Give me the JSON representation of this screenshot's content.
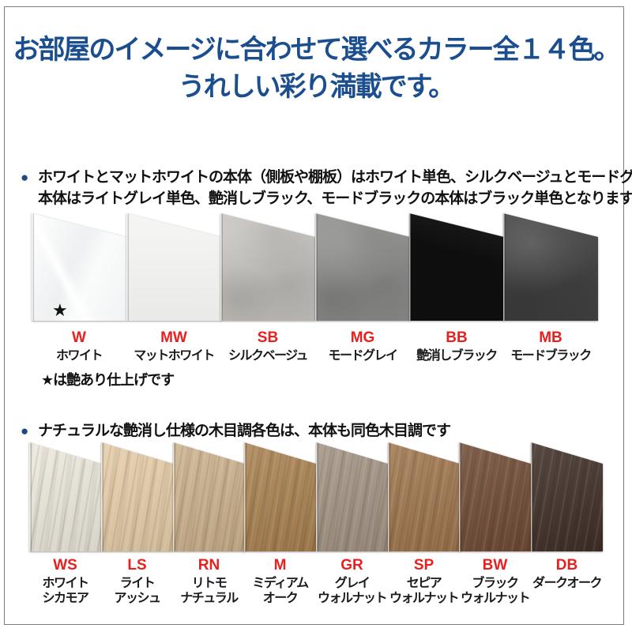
{
  "colors": {
    "title_blue": "#1b4e8f",
    "code_red": "#e8201f",
    "bullet_navy": "#1d4a86",
    "frame_gray": "#7d7d7d"
  },
  "title": {
    "line1": "お部屋のイメージに合わせて選べるカラー全１４色。",
    "line2": "うれしい彩り満載です。"
  },
  "bullet_glyph": "●",
  "sections": [
    {
      "note_lines": [
        "ホワイトとマットホワイトの本体（側板や棚板）はホワイト単色、シルクベージュとモードグレイの",
        "本体はライトグレイ単色、艶消しブラック、モードブラックの本体はブラック単色となります"
      ],
      "footnote": "★は艶あり仕上げです",
      "swatches": [
        {
          "code": "W",
          "name_lines": [
            "ホワイト"
          ],
          "hex": "#f6f6f6",
          "texture": "gloss",
          "star": "★"
        },
        {
          "code": "MW",
          "name_lines": [
            "マットホワイト"
          ],
          "hex": "#f2f2f1",
          "texture": "flat"
        },
        {
          "code": "SB",
          "name_lines": [
            "シルクベージュ"
          ],
          "hex": "#c9c6c1",
          "texture": "plaster"
        },
        {
          "code": "MG",
          "name_lines": [
            "モードグレイ"
          ],
          "hex": "#8d8d8b",
          "texture": "plaster"
        },
        {
          "code": "BB",
          "name_lines": [
            "艶消しブラック"
          ],
          "hex": "#0e0e0e",
          "texture": "black"
        },
        {
          "code": "MB",
          "name_lines": [
            "モードブラック"
          ],
          "hex": "#3e3e3e",
          "texture": "plaster"
        }
      ]
    },
    {
      "note_lines": [
        "ナチュラルな艶消し仕様の木目調各色は、本体も同色木目調です"
      ],
      "swatches": [
        {
          "code": "WS",
          "name_lines": [
            "ホワイト",
            "シカモア"
          ],
          "hex": "#ece8dd",
          "texture": "wood"
        },
        {
          "code": "LS",
          "name_lines": [
            "ライト",
            "アッシュ"
          ],
          "hex": "#e5cda8",
          "texture": "wood"
        },
        {
          "code": "RN",
          "name_lines": [
            "リトモ",
            "ナチュラル"
          ],
          "hex": "#ccb28d",
          "texture": "wood"
        },
        {
          "code": "M",
          "name_lines": [
            "ミディアム",
            "オーク"
          ],
          "hex": "#aa8251",
          "texture": "wood"
        },
        {
          "code": "GR",
          "name_lines": [
            "グレイ",
            "ウォルナット"
          ],
          "hex": "#a39484",
          "texture": "wood"
        },
        {
          "code": "SP",
          "name_lines": [
            "セピア",
            "ウォルナット"
          ],
          "hex": "#a0764e",
          "texture": "wood"
        },
        {
          "code": "BW",
          "name_lines": [
            "ブラック",
            "ウォルナット"
          ],
          "hex": "#704c36",
          "texture": "wood"
        },
        {
          "code": "DB",
          "name_lines": [
            "ダークオーク"
          ],
          "hex": "#402f28",
          "texture": "wood"
        }
      ]
    }
  ]
}
